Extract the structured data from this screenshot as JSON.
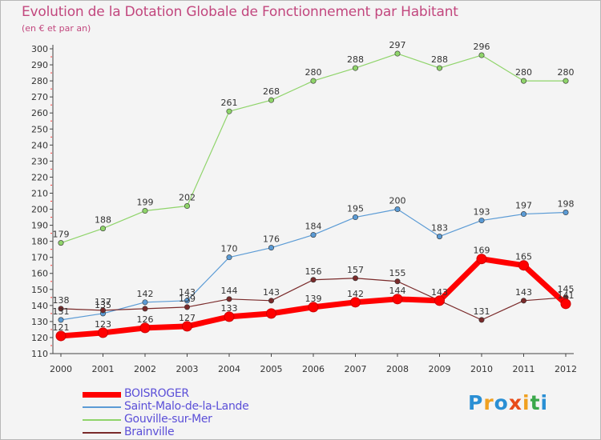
{
  "title": "Evolution de la Dotation Globale de Fonctionnement par Habitant",
  "subtitle": "(en € et par an)",
  "logo": {
    "letters": [
      "P",
      "r",
      "o",
      "x",
      "i",
      "t",
      "i"
    ],
    "colors": [
      "#2a8fd4",
      "#f0a020",
      "#2a8fd4",
      "#e84c1a",
      "#f0a020",
      "#3aa84a",
      "#2a8fd4"
    ]
  },
  "chart_data": {
    "type": "line",
    "x": [
      "2000",
      "2001",
      "2002",
      "2003",
      "2004",
      "2005",
      "2006",
      "2007",
      "2008",
      "2009",
      "2010",
      "2011",
      "2012"
    ],
    "ylim": [
      110,
      300
    ],
    "yticks": [
      110,
      120,
      130,
      140,
      150,
      160,
      170,
      180,
      190,
      200,
      210,
      220,
      230,
      240,
      250,
      260,
      270,
      280,
      290,
      300
    ],
    "grid": false,
    "legend_position": "bottom-left",
    "series": [
      {
        "name": "BOISROGER",
        "color": "#ff0000",
        "emphasis": true,
        "values": [
          121,
          123,
          126,
          127,
          133,
          135,
          139,
          142,
          144,
          143,
          169,
          165,
          141
        ],
        "labels": [
          "121",
          "123",
          "126",
          "127",
          "133",
          "",
          "139",
          "142",
          "144",
          "143",
          "169",
          "165",
          "141"
        ]
      },
      {
        "name": "Saint-Malo-de-la-Lande",
        "color": "#5b9bd5",
        "emphasis": false,
        "values": [
          131,
          135,
          142,
          143,
          170,
          176,
          184,
          195,
          200,
          183,
          193,
          197,
          198
        ],
        "labels": [
          "131",
          "135",
          "142",
          "143",
          "170",
          "176",
          "184",
          "195",
          "200",
          "183",
          "193",
          "197",
          "198"
        ]
      },
      {
        "name": "Gouville-sur-Mer",
        "color": "#8fd46a",
        "emphasis": false,
        "values": [
          179,
          188,
          199,
          202,
          261,
          268,
          280,
          288,
          297,
          288,
          296,
          280,
          280
        ],
        "labels": [
          "179",
          "188",
          "199",
          "202",
          "261",
          "268",
          "280",
          "288",
          "297",
          "288",
          "296",
          "280",
          "280"
        ]
      },
      {
        "name": "Brainville",
        "color": "#7a2a2a",
        "emphasis": false,
        "values": [
          138,
          137,
          138,
          139,
          144,
          143,
          156,
          157,
          155,
          143,
          131,
          143,
          145
        ],
        "labels": [
          "138",
          "137",
          "",
          "139",
          "144",
          "143",
          "156",
          "157",
          "155",
          "",
          "131",
          "143",
          "145"
        ]
      }
    ]
  }
}
